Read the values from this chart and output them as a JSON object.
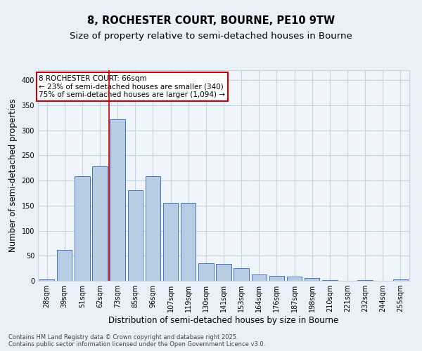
{
  "title_line1": "8, ROCHESTER COURT, BOURNE, PE10 9TW",
  "title_line2": "Size of property relative to semi-detached houses in Bourne",
  "xlabel": "Distribution of semi-detached houses by size in Bourne",
  "ylabel": "Number of semi-detached properties",
  "categories": [
    "28sqm",
    "39sqm",
    "51sqm",
    "62sqm",
    "73sqm",
    "85sqm",
    "96sqm",
    "107sqm",
    "119sqm",
    "130sqm",
    "141sqm",
    "153sqm",
    "164sqm",
    "176sqm",
    "187sqm",
    "198sqm",
    "210sqm",
    "221sqm",
    "232sqm",
    "244sqm",
    "255sqm"
  ],
  "values": [
    3,
    61,
    209,
    228,
    322,
    181,
    208,
    155,
    155,
    35,
    34,
    25,
    13,
    10,
    9,
    5,
    2,
    0,
    2,
    0,
    3
  ],
  "bar_color": "#b8cce4",
  "bar_edge_color": "#4472c4",
  "vline_x": 3.5,
  "vline_color": "#cc0000",
  "annotation_text": "8 ROCHESTER COURT: 66sqm\n← 23% of semi-detached houses are smaller (340)\n75% of semi-detached houses are larger (1,094) →",
  "annotation_box_color": "#ffffff",
  "annotation_box_edge": "#cc0000",
  "ylim": [
    0,
    420
  ],
  "yticks": [
    0,
    50,
    100,
    150,
    200,
    250,
    300,
    350,
    400
  ],
  "bg_color": "#eaf0f8",
  "plot_bg_color": "#f0f4fb",
  "grid_color": "#c5d5e8",
  "footnote": "Contains HM Land Registry data © Crown copyright and database right 2025.\nContains public sector information licensed under the Open Government Licence v3.0.",
  "title_fontsize": 10.5,
  "subtitle_fontsize": 9.5,
  "tick_fontsize": 7,
  "ylabel_fontsize": 8.5,
  "xlabel_fontsize": 8.5,
  "annot_fontsize": 7.5
}
